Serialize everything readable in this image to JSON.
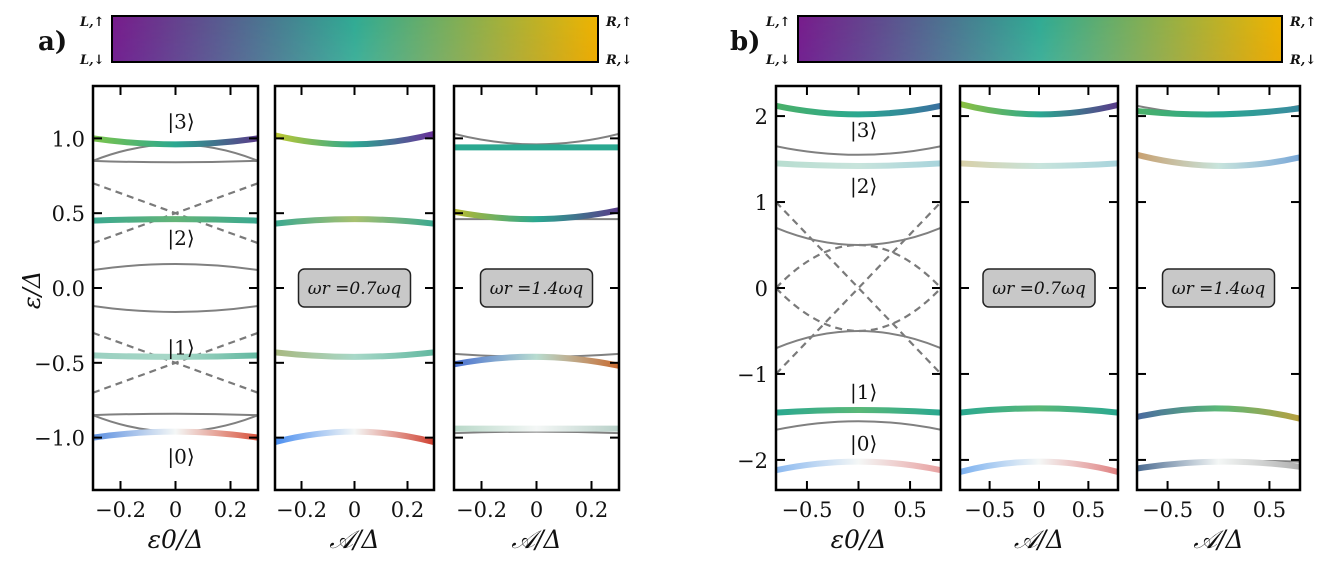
{
  "panel_labels": [
    "a)",
    "b)"
  ],
  "colorbar": {
    "corner_labels": {
      "top_left": "L,↑",
      "bottom_left": "L,↓",
      "top_right": "R,↑",
      "bottom_right": "R,↓"
    },
    "colors": {
      "top_left": "#7a1a8a",
      "top_mid": "#2aa890",
      "top_right": "#f0b800",
      "bottom_left": "#3d5fd0",
      "bottom_mid": "#f4f7f6",
      "bottom_right": "#d2421e"
    }
  },
  "ylabel": "ε/Δ",
  "state_labels": [
    "|0⟩",
    "|1⟩",
    "|2⟩",
    "|3⟩"
  ],
  "chart_data": [
    {
      "id": "a-left",
      "type": "line",
      "xlabel": "ε0/Δ",
      "xlim": [
        -0.3,
        0.3
      ],
      "ylim": [
        -1.35,
        1.35
      ],
      "xticks": [
        -0.2,
        0,
        0.2
      ],
      "xtick_labels": [
        "−0.2",
        "0",
        "0.2"
      ],
      "yticks": [
        -1.0,
        -0.5,
        0.0,
        0.5,
        1.0
      ],
      "ytick_labels": [
        "−1.0",
        "−0.5",
        "0.0",
        "0.5",
        "1.0"
      ],
      "gray_curves": [
        {
          "x": [
            -0.3,
            0,
            0.3
          ],
          "y": [
            0.85,
            0.96,
            0.85
          ]
        },
        {
          "x": [
            -0.3,
            0,
            0.3
          ],
          "y": [
            0.12,
            0.16,
            0.12
          ]
        },
        {
          "x": [
            -0.3,
            0,
            0.3
          ],
          "y": [
            -0.12,
            -0.16,
            -0.12
          ]
        },
        {
          "x": [
            -0.3,
            0,
            0.3
          ],
          "y": [
            -0.85,
            -0.96,
            -0.85
          ]
        },
        {
          "x": [
            -0.3,
            0,
            0.3
          ],
          "y": [
            -0.85,
            -0.84,
            -0.85
          ]
        },
        {
          "x": [
            -0.3,
            0,
            0.3
          ],
          "y": [
            0.85,
            0.84,
            0.85
          ]
        }
      ],
      "dashed_lines": [
        {
          "x": [
            -0.3,
            0.3
          ],
          "y": [
            0.7,
            0.3
          ]
        },
        {
          "x": [
            -0.3,
            0.3
          ],
          "y": [
            0.3,
            0.7
          ]
        },
        {
          "x": [
            -0.3,
            0.3
          ],
          "y": [
            -0.3,
            -0.7
          ]
        },
        {
          "x": [
            -0.3,
            0.3
          ],
          "y": [
            -0.7,
            -0.3
          ]
        }
      ],
      "colored_curves": [
        {
          "x": [
            -0.3,
            0,
            0.3
          ],
          "y": [
            1.0,
            0.96,
            1.0
          ],
          "colors": [
            "#7cc44a",
            "#2aa890",
            "#5b3a8a"
          ]
        },
        {
          "x": [
            -0.3,
            0,
            0.3
          ],
          "y": [
            0.45,
            0.46,
            0.45
          ],
          "colors": [
            "#3aa890",
            "#64b478",
            "#3aa890"
          ]
        },
        {
          "x": [
            -0.3,
            0,
            0.3
          ],
          "y": [
            -0.45,
            -0.46,
            -0.45
          ],
          "colors": [
            "#9ad0c0",
            "#a8d8c8",
            "#62b8a0"
          ]
        },
        {
          "x": [
            -0.3,
            0,
            0.3
          ],
          "y": [
            -1.0,
            -0.96,
            -1.0
          ],
          "colors": [
            "#5a8ee0",
            "#f4f7f6",
            "#d8503a"
          ]
        }
      ],
      "state_label_positions": [
        [
          0.02,
          -1.12
        ],
        [
          0.02,
          -0.39
        ],
        [
          0.02,
          0.34
        ],
        [
          0.02,
          1.12
        ]
      ],
      "annotation": ""
    },
    {
      "id": "a-mid",
      "type": "line",
      "xlabel": "𝒜/Δ",
      "xlim": [
        -0.3,
        0.3
      ],
      "ylim": [
        -1.35,
        1.35
      ],
      "xticks": [
        -0.2,
        0,
        0.2
      ],
      "xtick_labels": [
        "−0.2",
        "0",
        "0.2"
      ],
      "yticks": [
        -1.0,
        -0.5,
        0.0,
        0.5,
        1.0
      ],
      "gray_curves": [],
      "dashed_lines": [],
      "colored_curves": [
        {
          "x": [
            -0.3,
            0,
            0.3
          ],
          "y": [
            1.02,
            0.96,
            1.03
          ],
          "colors": [
            "#c0c830",
            "#2aa890",
            "#6a2f9a"
          ]
        },
        {
          "x": [
            -0.3,
            0,
            0.3
          ],
          "y": [
            0.43,
            0.46,
            0.43
          ],
          "colors": [
            "#3aa890",
            "#a8c070",
            "#3aa890"
          ]
        },
        {
          "x": [
            -0.3,
            0,
            0.3
          ],
          "y": [
            -0.43,
            -0.46,
            -0.43
          ],
          "colors": [
            "#a8b880",
            "#a8d8c8",
            "#62b8a0"
          ]
        },
        {
          "x": [
            -0.3,
            0,
            0.3
          ],
          "y": [
            -1.03,
            -0.96,
            -1.03
          ],
          "colors": [
            "#4a8ef0",
            "#f4f7f6",
            "#d04030"
          ]
        }
      ],
      "state_label_positions": [],
      "annotation": "ωr =0.7ωq"
    },
    {
      "id": "a-right",
      "type": "line",
      "xlabel": "𝒜/Δ",
      "xlim": [
        -0.3,
        0.3
      ],
      "ylim": [
        -1.35,
        1.35
      ],
      "xticks": [
        -0.2,
        0,
        0.2
      ],
      "xtick_labels": [
        "−0.2",
        "0",
        "0.2"
      ],
      "yticks": [
        -1.0,
        -0.5,
        0.0,
        0.5,
        1.0
      ],
      "gray_curves": [
        {
          "x": [
            -0.3,
            0,
            0.3
          ],
          "y": [
            1.03,
            0.96,
            1.03
          ]
        },
        {
          "x": [
            -0.3,
            0,
            0.3
          ],
          "y": [
            0.46,
            0.46,
            0.46
          ]
        },
        {
          "x": [
            -0.3,
            0,
            0.3
          ],
          "y": [
            -0.44,
            -0.46,
            -0.44
          ]
        },
        {
          "x": [
            -0.3,
            0,
            0.3
          ],
          "y": [
            -0.97,
            -0.96,
            -0.97
          ]
        }
      ],
      "dashed_lines": [],
      "colored_curves": [
        {
          "x": [
            -0.3,
            0,
            0.3
          ],
          "y": [
            0.94,
            0.94,
            0.94
          ],
          "colors": [
            "#2aa890",
            "#2aa890",
            "#2aa890"
          ]
        },
        {
          "x": [
            -0.3,
            0,
            0.3
          ],
          "y": [
            0.51,
            0.46,
            0.52
          ],
          "colors": [
            "#b8b830",
            "#2aa890",
            "#5a3a8a"
          ]
        },
        {
          "x": [
            -0.3,
            0,
            0.3
          ],
          "y": [
            -0.51,
            -0.46,
            -0.52
          ],
          "colors": [
            "#4a70d0",
            "#b8dcd0",
            "#c86a30"
          ]
        },
        {
          "x": [
            -0.3,
            0,
            0.3
          ],
          "y": [
            -0.94,
            -0.94,
            -0.94
          ],
          "colors": [
            "#b8d8c8",
            "#f4f7f6",
            "#b8d0c8"
          ]
        }
      ],
      "state_label_positions": [],
      "annotation": "ωr =1.4ωq"
    },
    {
      "id": "b-left",
      "type": "line",
      "xlabel": "ε0/Δ",
      "xlim": [
        -0.8,
        0.8
      ],
      "ylim": [
        -2.35,
        2.35
      ],
      "xticks": [
        -0.5,
        0,
        0.5
      ],
      "xtick_labels": [
        "−0.5",
        "0",
        "0.5"
      ],
      "yticks": [
        -2,
        -1,
        0,
        1,
        2
      ],
      "ytick_labels": [
        "−2",
        "−1",
        "0",
        "1",
        "2"
      ],
      "gray_curves": [
        {
          "x": [
            -0.8,
            0,
            0.8
          ],
          "y": [
            1.65,
            1.55,
            1.65
          ]
        },
        {
          "x": [
            -0.8,
            0,
            0.8
          ],
          "y": [
            1.45,
            1.42,
            1.45
          ]
        },
        {
          "x": [
            -0.8,
            0,
            0.8
          ],
          "y": [
            0.7,
            0.5,
            0.7
          ]
        },
        {
          "x": [
            -0.8,
            0,
            0.8
          ],
          "y": [
            -0.7,
            -0.5,
            -0.7
          ]
        },
        {
          "x": [
            -0.8,
            0,
            0.8
          ],
          "y": [
            -1.65,
            -1.55,
            -1.65
          ]
        }
      ],
      "dashed_lines": [
        {
          "x": [
            -0.8,
            0.8
          ],
          "y": [
            1.0,
            -1.0
          ]
        },
        {
          "x": [
            -0.8,
            0.8
          ],
          "y": [
            -1.0,
            1.0
          ]
        },
        {
          "x": [
            -0.8,
            0.0,
            0.8
          ],
          "y": [
            0.0,
            0.5,
            0.0
          ]
        },
        {
          "x": [
            -0.8,
            0.0,
            0.8
          ],
          "y": [
            0.0,
            -0.5,
            0.0
          ]
        }
      ],
      "colored_curves": [
        {
          "x": [
            -0.8,
            0,
            0.8
          ],
          "y": [
            2.12,
            2.02,
            2.12
          ],
          "colors": [
            "#4ab068",
            "#2aa890",
            "#3a70a0"
          ]
        },
        {
          "x": [
            -0.8,
            0,
            0.8
          ],
          "y": [
            1.45,
            1.42,
            1.45
          ],
          "colors": [
            "#b8ddd0",
            "#c8e4dc",
            "#a8d4dc"
          ]
        },
        {
          "x": [
            -0.8,
            0,
            0.8
          ],
          "y": [
            -1.45,
            -1.42,
            -1.45
          ],
          "colors": [
            "#2aa890",
            "#5ab878",
            "#2aa890"
          ]
        },
        {
          "x": [
            -0.8,
            0,
            0.8
          ],
          "y": [
            -2.12,
            -2.02,
            -2.12
          ],
          "colors": [
            "#8ab8f0",
            "#f4f7f6",
            "#e8a0a0"
          ]
        }
      ],
      "state_label_positions": [
        [
          0.05,
          -1.8
        ],
        [
          0.05,
          -1.2
        ],
        [
          0.05,
          1.2
        ],
        [
          0.05,
          1.85
        ]
      ],
      "annotation": ""
    },
    {
      "id": "b-mid",
      "type": "line",
      "xlabel": "𝒜/Δ",
      "xlim": [
        -0.8,
        0.8
      ],
      "ylim": [
        -2.35,
        2.35
      ],
      "xticks": [
        -0.5,
        0,
        0.5
      ],
      "xtick_labels": [
        "−0.5",
        "0",
        "0.5"
      ],
      "yticks": [
        -2,
        -1,
        0,
        1,
        2
      ],
      "gray_curves": [],
      "dashed_lines": [],
      "colored_curves": [
        {
          "x": [
            -0.8,
            0,
            0.8
          ],
          "y": [
            2.14,
            2.02,
            2.13
          ],
          "colors": [
            "#8cc040",
            "#2aa890",
            "#5a3a8a"
          ]
        },
        {
          "x": [
            -0.8,
            0,
            0.8
          ],
          "y": [
            1.45,
            1.42,
            1.45
          ],
          "colors": [
            "#d8d0a8",
            "#c8e4dc",
            "#a8d4dc"
          ]
        },
        {
          "x": [
            -0.8,
            0,
            0.8
          ],
          "y": [
            -1.45,
            -1.4,
            -1.45
          ],
          "colors": [
            "#2aa890",
            "#5ab878",
            "#2aa890"
          ]
        },
        {
          "x": [
            -0.8,
            0,
            0.8
          ],
          "y": [
            -2.14,
            -2.02,
            -2.14
          ],
          "colors": [
            "#7ab0f0",
            "#f4f7f6",
            "#e08080"
          ]
        }
      ],
      "state_label_positions": [],
      "annotation": "ωr =0.7ωq"
    },
    {
      "id": "b-right",
      "type": "line",
      "xlabel": "𝒜/Δ",
      "xlim": [
        -0.8,
        0.8
      ],
      "ylim": [
        -2.35,
        2.35
      ],
      "xticks": [
        -0.5,
        0,
        0.5
      ],
      "xtick_labels": [
        "−0.5",
        "0",
        "0.5"
      ],
      "yticks": [
        -2,
        -1,
        0,
        1,
        2
      ],
      "gray_curves": [
        {
          "x": [
            -0.8,
            0,
            0.8
          ],
          "y": [
            2.12,
            2.02,
            2.12
          ]
        },
        {
          "x": [
            -0.8,
            0,
            0.8
          ],
          "y": [
            -2.08,
            -2.02,
            -2.02
          ]
        }
      ],
      "dashed_lines": [],
      "colored_curves": [
        {
          "x": [
            -0.8,
            0,
            0.8
          ],
          "y": [
            2.06,
            2.02,
            2.09
          ],
          "colors": [
            "#4ab068",
            "#2aa890",
            "#3a8aa0"
          ]
        },
        {
          "x": [
            -0.8,
            0,
            0.8
          ],
          "y": [
            1.55,
            1.42,
            1.52
          ],
          "colors": [
            "#c8a070",
            "#c8e4dc",
            "#7aa8d8"
          ]
        },
        {
          "x": [
            -0.8,
            0,
            0.8
          ],
          "y": [
            -1.5,
            -1.4,
            -1.52
          ],
          "colors": [
            "#4a6aa0",
            "#5ab878",
            "#b8a040"
          ]
        },
        {
          "x": [
            -0.8,
            0,
            0.8
          ],
          "y": [
            -2.1,
            -2.02,
            -2.08
          ],
          "colors": [
            "#4a6a90",
            "#f4f7f6",
            "#b0b0b0"
          ]
        }
      ],
      "state_label_positions": [],
      "annotation": "ωr =1.4ωq"
    }
  ]
}
